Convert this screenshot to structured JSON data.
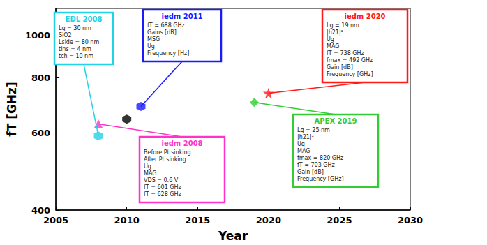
{
  "chart_data": {
    "type": "scatter",
    "x_label": "Year",
    "y_label": "fT [GHz]",
    "xlim": [
      2005,
      2030
    ],
    "xticks": [
      2005,
      2010,
      2015,
      2020,
      2025,
      2030
    ],
    "ylim": [
      400,
      1150
    ],
    "yticks": [
      400,
      600,
      800,
      1000
    ],
    "log": "y",
    "grid": false,
    "series": [
      {
        "name": "EDL 2008",
        "color": "#22d3e6",
        "marker": "hexagon",
        "x": [
          2008
        ],
        "values": [
          590
        ]
      },
      {
        "name": "iedm 2008",
        "color": "#ff33cc",
        "marker": "triangle",
        "x": [
          2008
        ],
        "values": [
          628
        ]
      },
      {
        "name": "iedm 2011",
        "color": "#1a1aff",
        "marker": "hexagon",
        "x": [
          2011
        ],
        "values": [
          688
        ]
      },
      {
        "name": "APEX 2019",
        "color": "#33cc33",
        "marker": "diamond",
        "x": [
          2019
        ],
        "values": [
          703
        ]
      },
      {
        "name": "iedm 2020",
        "color": "#ff1a1a",
        "marker": "star",
        "x": [
          2020
        ],
        "values": [
          738
        ]
      },
      {
        "color": "#000000",
        "marker": "hexagon",
        "x": [
          2010
        ],
        "values": [
          644
        ]
      }
    ],
    "annotations": [
      {
        "series": "EDL 2008",
        "texts": [
          "Lg = 30 nm",
          "SiO2",
          "Lside = 80 nm",
          "tins = 4 nm",
          "tch = 10 nm"
        ]
      },
      {
        "series": "iedm 2011",
        "texts": [
          "fT = 688 GHz",
          "Gains [dB]",
          "MSG",
          "Ug",
          "Frequency [Hz]"
        ]
      },
      {
        "series": "iedm 2020",
        "texts": [
          "Lg = 19 nm",
          "|h21|²",
          "Ug",
          "MAG",
          "fT = 738 GHz",
          "fmax = 492 GHz",
          "Gain [dB]",
          "Frequency [GHz]"
        ]
      },
      {
        "series": "APEX 2019",
        "texts": [
          "Lg = 25 nm",
          "|h21|²",
          "Ug",
          "MAG",
          "fmax = 820 GHz",
          "fT = 703 GHz",
          "Gain [dB]",
          "Frequency [GHz]"
        ]
      },
      {
        "series": "iedm 2008",
        "texts": [
          "Before Pt sinking",
          "After Pt sinking",
          "Ug",
          "MAG",
          "VDS = 0.6 V",
          "fT = 601 GHz",
          "fT = 628 GHz"
        ]
      }
    ]
  }
}
